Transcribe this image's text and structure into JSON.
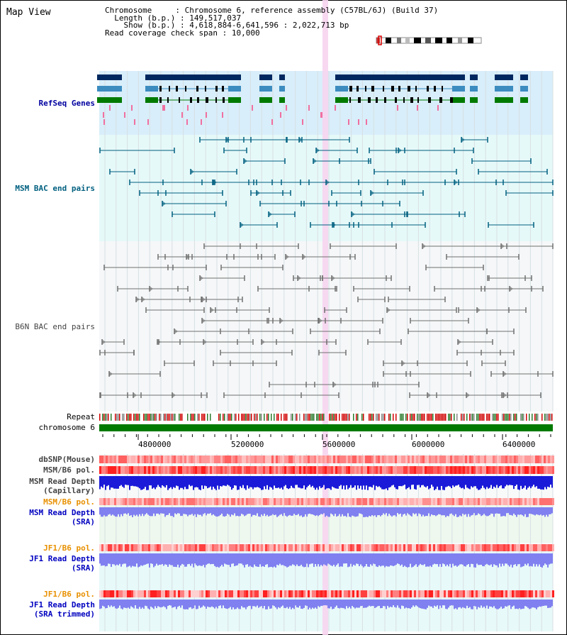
{
  "view_title": "Map View",
  "info": {
    "chromosome_key": "Chromosome     ",
    "chromosome_val": "Chromosome 6, reference assembly (C57BL/6J) (Build 37)",
    "length_key": "Length (b.p.)",
    "length_val": "149,517,037",
    "show_key": "  Show (b.p.)",
    "show_val": "4,618,884-6,641,596 : 2,022,713 bp",
    "span_key": "Read coverage check span",
    "span_val": "10,000"
  },
  "tracks": {
    "refseq": "RefSeq Genes",
    "msm_bac": "MSM BAC end pairs",
    "b6n_bac": "B6N BAC end pairs",
    "repeat": "Repeat",
    "chromosome": "chromosome 6",
    "dbsnp": "dbSNP(Mouse)",
    "msm_b6_pol": "MSM/B6 pol.",
    "msm_depth_cap_1": "MSM Read Depth",
    "msm_depth_cap_2": "(Capillary)",
    "msm_b6_pol_2": "MSM/B6 pol.",
    "msm_depth_sra_1": "MSM Read Depth",
    "msm_depth_sra_2": "(SRA)",
    "jf1_pol": "JF1/B6 pol.",
    "jf1_depth_sra_1": "JF1 Read Depth",
    "jf1_depth_sra_2": "(SRA)",
    "jf1_pol_2": "JF1/B6 pol.",
    "jf1_depth_trim_1": "JF1 Read Depth",
    "jf1_depth_trim_2": "(SRA trimmed)"
  },
  "axis": {
    "ticks": [
      "4800000",
      "5200000",
      "5600000",
      "6000000",
      "6400000"
    ]
  },
  "colors": {
    "refseq_bg": "#d8eefa",
    "msm_bac_bg": "#e6f9f9",
    "b6n_bg": "#f5f7f8",
    "highlight": "#f7d4ef",
    "chromosome_bar": "#007a00",
    "navy": "#002860",
    "steel": "#3c8cc0",
    "green": "#007a00",
    "bac_msm": "#006080",
    "bac_b6n": "#707070",
    "depth_cap": "#1a1ad8",
    "depth_sra": "#8080f0"
  }
}
